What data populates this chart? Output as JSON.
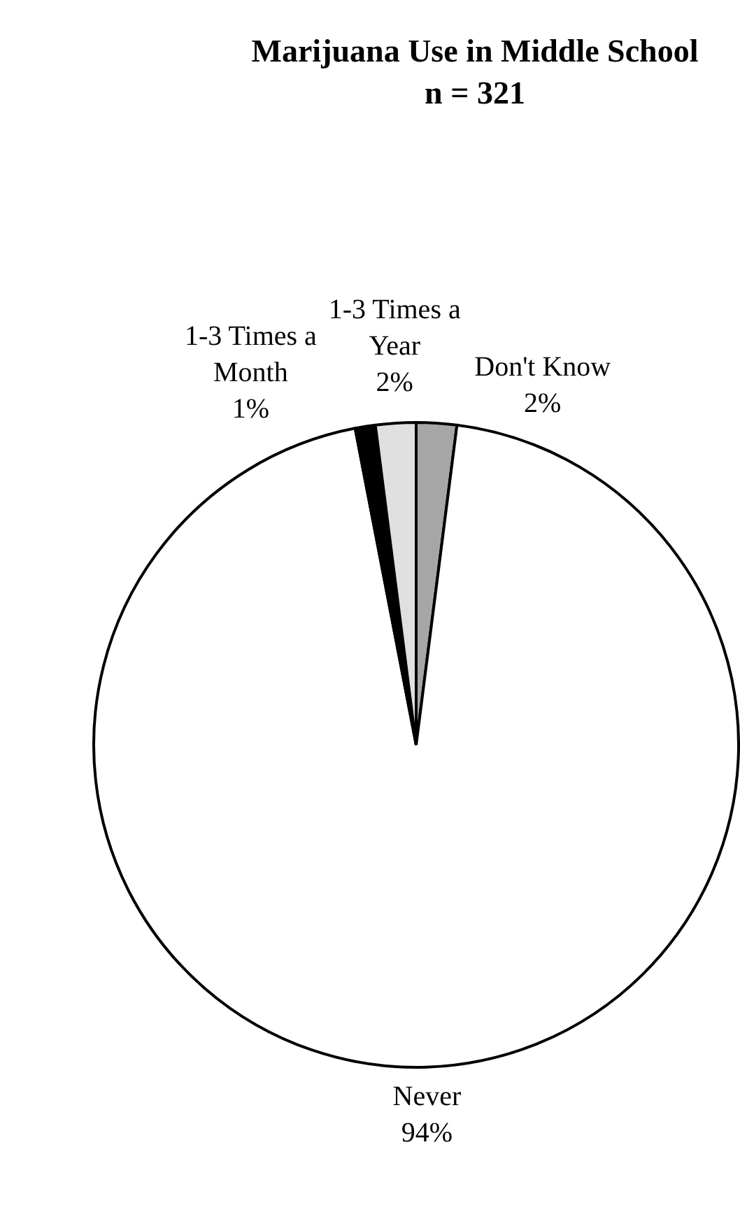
{
  "chart_data": {
    "type": "pie",
    "title": "Marijuana Use in Middle School",
    "subtitle": "n = 321",
    "categories": [
      "Don't Know",
      "Never",
      "1-3 Times a Month",
      "1-3 Times a Year"
    ],
    "values": [
      2,
      94,
      1,
      2
    ],
    "value_labels": [
      "2%",
      "94%",
      "1%",
      "2%"
    ],
    "colors": [
      "#a6a6a6",
      "#ffffff",
      "#000000",
      "#e0e0e0"
    ],
    "legend": false
  }
}
